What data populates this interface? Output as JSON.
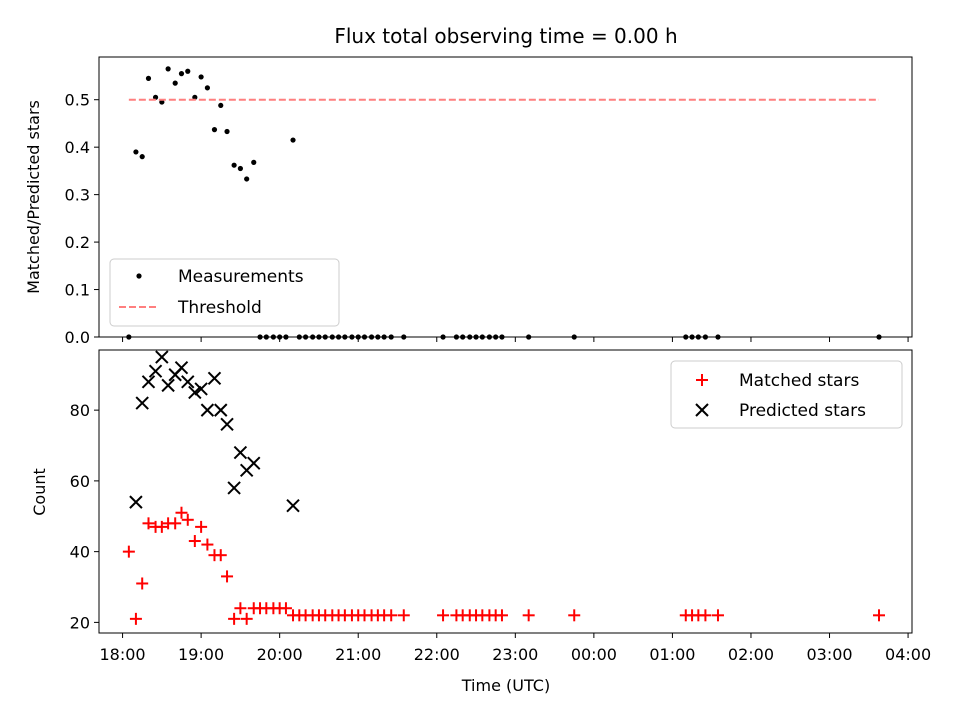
{
  "chart_data": {
    "title": "Flux total observing time = 0.00 h",
    "xlabel": "Time (UTC)",
    "x_ticks": [
      "18:00",
      "19:00",
      "20:00",
      "21:00",
      "22:00",
      "23:00",
      "00:00",
      "01:00",
      "02:00",
      "03:00",
      "04:00"
    ],
    "x_range_hours": [
      17.7,
      28.05
    ],
    "panels": [
      {
        "type": "scatter",
        "ylabel": "Matched/Predicted stars",
        "ylim": [
          0,
          0.59
        ],
        "y_ticks": [
          "0.0",
          "0.1",
          "0.2",
          "0.3",
          "0.4",
          "0.5"
        ],
        "legend_position": "lower-left",
        "series": [
          {
            "name": "Measurements",
            "marker": "dot",
            "color": "#000000",
            "points": [
              [
                18.08,
                0.0
              ],
              [
                18.17,
                0.39
              ],
              [
                18.25,
                0.38
              ],
              [
                18.33,
                0.545
              ],
              [
                18.42,
                0.505
              ],
              [
                18.5,
                0.495
              ],
              [
                18.58,
                0.565
              ],
              [
                18.67,
                0.535
              ],
              [
                18.75,
                0.555
              ],
              [
                18.83,
                0.56
              ],
              [
                18.92,
                0.505
              ],
              [
                19.0,
                0.548
              ],
              [
                19.08,
                0.525
              ],
              [
                19.17,
                0.437
              ],
              [
                19.25,
                0.488
              ],
              [
                19.33,
                0.433
              ],
              [
                19.42,
                0.362
              ],
              [
                19.5,
                0.355
              ],
              [
                19.58,
                0.333
              ],
              [
                19.67,
                0.368
              ],
              [
                19.75,
                0.0
              ],
              [
                19.83,
                0.0
              ],
              [
                19.92,
                0.0
              ],
              [
                20.0,
                0.0
              ],
              [
                20.08,
                0.0
              ],
              [
                20.17,
                0.415
              ],
              [
                20.25,
                0.0
              ],
              [
                20.33,
                0.0
              ],
              [
                20.42,
                0.0
              ],
              [
                20.5,
                0.0
              ],
              [
                20.58,
                0.0
              ],
              [
                20.67,
                0.0
              ],
              [
                20.75,
                0.0
              ],
              [
                20.83,
                0.0
              ],
              [
                20.92,
                0.0
              ],
              [
                21.0,
                0.0
              ],
              [
                21.08,
                0.0
              ],
              [
                21.17,
                0.0
              ],
              [
                21.25,
                0.0
              ],
              [
                21.33,
                0.0
              ],
              [
                21.42,
                0.0
              ],
              [
                21.58,
                0.0
              ],
              [
                22.08,
                0.0
              ],
              [
                22.25,
                0.0
              ],
              [
                22.33,
                0.0
              ],
              [
                22.42,
                0.0
              ],
              [
                22.5,
                0.0
              ],
              [
                22.58,
                0.0
              ],
              [
                22.67,
                0.0
              ],
              [
                22.75,
                0.0
              ],
              [
                22.83,
                0.0
              ],
              [
                23.17,
                0.0
              ],
              [
                23.75,
                0.0
              ],
              [
                25.17,
                0.0
              ],
              [
                25.25,
                0.0
              ],
              [
                25.33,
                0.0
              ],
              [
                25.42,
                0.0
              ],
              [
                25.58,
                0.0
              ],
              [
                27.63,
                0.0
              ]
            ]
          },
          {
            "name": "Threshold",
            "marker": "dashed-line",
            "color": "#ff7f7f",
            "points": [
              [
                18.08,
                0.5
              ],
              [
                27.63,
                0.5
              ]
            ]
          }
        ]
      },
      {
        "type": "scatter",
        "ylabel": "Count",
        "ylim": [
          17,
          97
        ],
        "y_ticks": [
          "20",
          "40",
          "60",
          "80"
        ],
        "legend_position": "upper-right",
        "series": [
          {
            "name": "Matched stars",
            "marker": "plus",
            "color": "#ff0000",
            "points": [
              [
                18.08,
                40
              ],
              [
                18.17,
                21
              ],
              [
                18.25,
                31
              ],
              [
                18.33,
                48
              ],
              [
                18.42,
                47
              ],
              [
                18.5,
                47
              ],
              [
                18.58,
                48
              ],
              [
                18.67,
                48
              ],
              [
                18.75,
                51
              ],
              [
                18.83,
                49
              ],
              [
                18.92,
                43
              ],
              [
                19.0,
                47
              ],
              [
                19.08,
                42
              ],
              [
                19.17,
                39
              ],
              [
                19.25,
                39
              ],
              [
                19.33,
                33
              ],
              [
                19.42,
                21
              ],
              [
                19.5,
                24
              ],
              [
                19.58,
                21
              ],
              [
                19.67,
                24
              ],
              [
                19.75,
                24
              ],
              [
                19.83,
                24
              ],
              [
                19.92,
                24
              ],
              [
                20.0,
                24
              ],
              [
                20.08,
                24
              ],
              [
                20.17,
                22
              ],
              [
                20.25,
                22
              ],
              [
                20.33,
                22
              ],
              [
                20.42,
                22
              ],
              [
                20.5,
                22
              ],
              [
                20.58,
                22
              ],
              [
                20.67,
                22
              ],
              [
                20.75,
                22
              ],
              [
                20.83,
                22
              ],
              [
                20.92,
                22
              ],
              [
                21.0,
                22
              ],
              [
                21.08,
                22
              ],
              [
                21.17,
                22
              ],
              [
                21.25,
                22
              ],
              [
                21.33,
                22
              ],
              [
                21.42,
                22
              ],
              [
                21.58,
                22
              ],
              [
                22.08,
                22
              ],
              [
                22.25,
                22
              ],
              [
                22.33,
                22
              ],
              [
                22.42,
                22
              ],
              [
                22.5,
                22
              ],
              [
                22.58,
                22
              ],
              [
                22.67,
                22
              ],
              [
                22.75,
                22
              ],
              [
                22.83,
                22
              ],
              [
                23.17,
                22
              ],
              [
                23.75,
                22
              ],
              [
                25.17,
                22
              ],
              [
                25.25,
                22
              ],
              [
                25.33,
                22
              ],
              [
                25.42,
                22
              ],
              [
                25.58,
                22
              ],
              [
                27.63,
                22
              ]
            ]
          },
          {
            "name": "Predicted stars",
            "marker": "x",
            "color": "#000000",
            "points": [
              [
                18.17,
                54
              ],
              [
                18.25,
                82
              ],
              [
                18.33,
                88
              ],
              [
                18.42,
                91
              ],
              [
                18.5,
                95
              ],
              [
                18.58,
                87
              ],
              [
                18.67,
                90
              ],
              [
                18.75,
                92
              ],
              [
                18.83,
                88
              ],
              [
                18.92,
                85
              ],
              [
                19.0,
                86
              ],
              [
                19.08,
                80
              ],
              [
                19.17,
                89
              ],
              [
                19.25,
                80
              ],
              [
                19.33,
                76
              ],
              [
                19.42,
                58
              ],
              [
                19.5,
                68
              ],
              [
                19.58,
                63
              ],
              [
                19.67,
                65
              ],
              [
                20.17,
                53
              ]
            ]
          }
        ]
      }
    ]
  }
}
